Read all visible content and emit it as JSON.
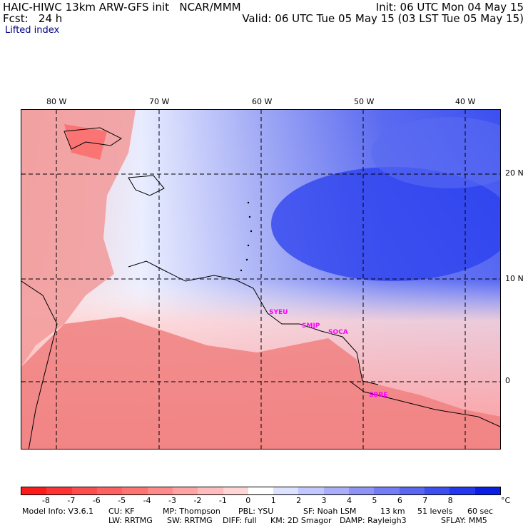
{
  "header": {
    "title_left": "HAIC-HIWC 13km ARW-GFS init   NCAR/MMM",
    "init": "Init: 06 UTC Mon 04 May 15",
    "fcst": "Fcst:   24 h",
    "valid": "Valid: 06 UTC Tue 05 May 15 (03 LST Tue 05 May 15)",
    "field": "Lifted index"
  },
  "map": {
    "lon_labels": [
      "80 W",
      "70 W",
      "60 W",
      "50 W",
      "40 W"
    ],
    "lat_labels": [
      "20 N",
      "10 N",
      "0"
    ],
    "stations": [
      "SYEU",
      "SMJP",
      "SOCA",
      "SBBE"
    ]
  },
  "colorbar": {
    "labels": [
      "-8",
      "-7",
      "-6",
      "-5",
      "-4",
      "-3",
      "-2",
      "-1",
      "0",
      "1",
      "2",
      "3",
      "4",
      "5",
      "6",
      "7",
      "8"
    ],
    "unit": "°C",
    "colors": [
      "#ff1a1a",
      "#ff3333",
      "#ff4d4d",
      "#ff6060",
      "#ff7373",
      "#ff8a8a",
      "#ffa3a3",
      "#ffbdbd",
      "#ffd6d6",
      "#ffffff",
      "#dde2ff",
      "#c2c8ff",
      "#a8aefa",
      "#8e95f7",
      "#737df5",
      "#5866f2",
      "#3d4ff0",
      "#2338ee",
      "#0a1fe6"
    ]
  },
  "footer": {
    "line1": [
      "Model Info: V3.6.1",
      "CU: KF",
      "MP: Thompson",
      "PBL: YSU",
      "SF: Noah LSM",
      "13 km",
      "51 levels",
      "60 sec"
    ],
    "line2": [
      "LW: RRTMG",
      "SW: RRTMG",
      "DIFF: full",
      "KM: 2D Smagor",
      "DAMP: Rayleigh3",
      "SFLAY: MM5"
    ]
  }
}
